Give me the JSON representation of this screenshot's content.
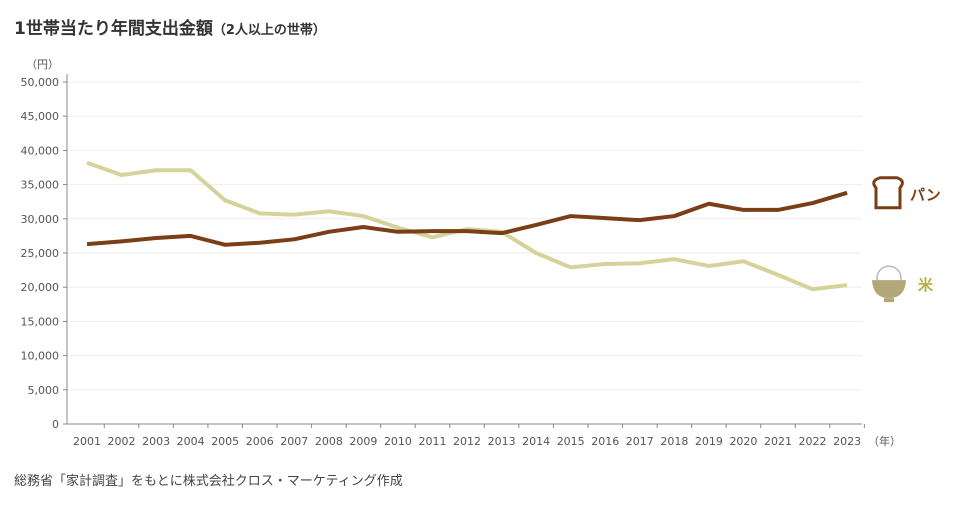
{
  "chart_data": {
    "type": "line",
    "title": "1世帯当たり年間支出金額",
    "subtitle": "（2人以上の世帯）",
    "ylabel": "（円）",
    "xlabel": "（年）",
    "ylim": [
      0,
      50000
    ],
    "yticks": [
      0,
      5000,
      10000,
      15000,
      20000,
      25000,
      30000,
      35000,
      40000,
      45000,
      50000
    ],
    "ytick_labels": [
      "0",
      "5,000",
      "10,000",
      "15,000",
      "20,000",
      "25,000",
      "30,000",
      "35,000",
      "40,000",
      "45,000",
      "50,000"
    ],
    "x": [
      "2001",
      "2002",
      "2003",
      "2004",
      "2005",
      "2006",
      "2007",
      "2008",
      "2009",
      "2010",
      "2011",
      "2012",
      "2013",
      "2014",
      "2015",
      "2016",
      "2017",
      "2018",
      "2019",
      "2020",
      "2021",
      "2022",
      "2023"
    ],
    "grid": true,
    "legend": "right, at line ends",
    "series": [
      {
        "name": "パン",
        "color": "#7a3f16",
        "icon": "bread-icon",
        "values": [
          26300,
          26700,
          27200,
          27500,
          26200,
          26500,
          27000,
          28100,
          28800,
          28100,
          28200,
          28200,
          27900,
          29100,
          30400,
          30100,
          29800,
          30400,
          32200,
          31300,
          31300,
          32300,
          33800
        ]
      },
      {
        "name": "米",
        "color": "#d6d39a",
        "label_color": "#b5ad3c",
        "icon": "rice-bowl-icon",
        "values": [
          38200,
          36400,
          37100,
          37100,
          32700,
          30800,
          30600,
          31100,
          30400,
          28700,
          27300,
          28500,
          28100,
          25000,
          22900,
          23400,
          23500,
          24100,
          23100,
          23800,
          21800,
          19700,
          20300
        ]
      }
    ]
  },
  "source": "総務省「家計調査」をもとに株式会社クロス・マーケティング作成"
}
